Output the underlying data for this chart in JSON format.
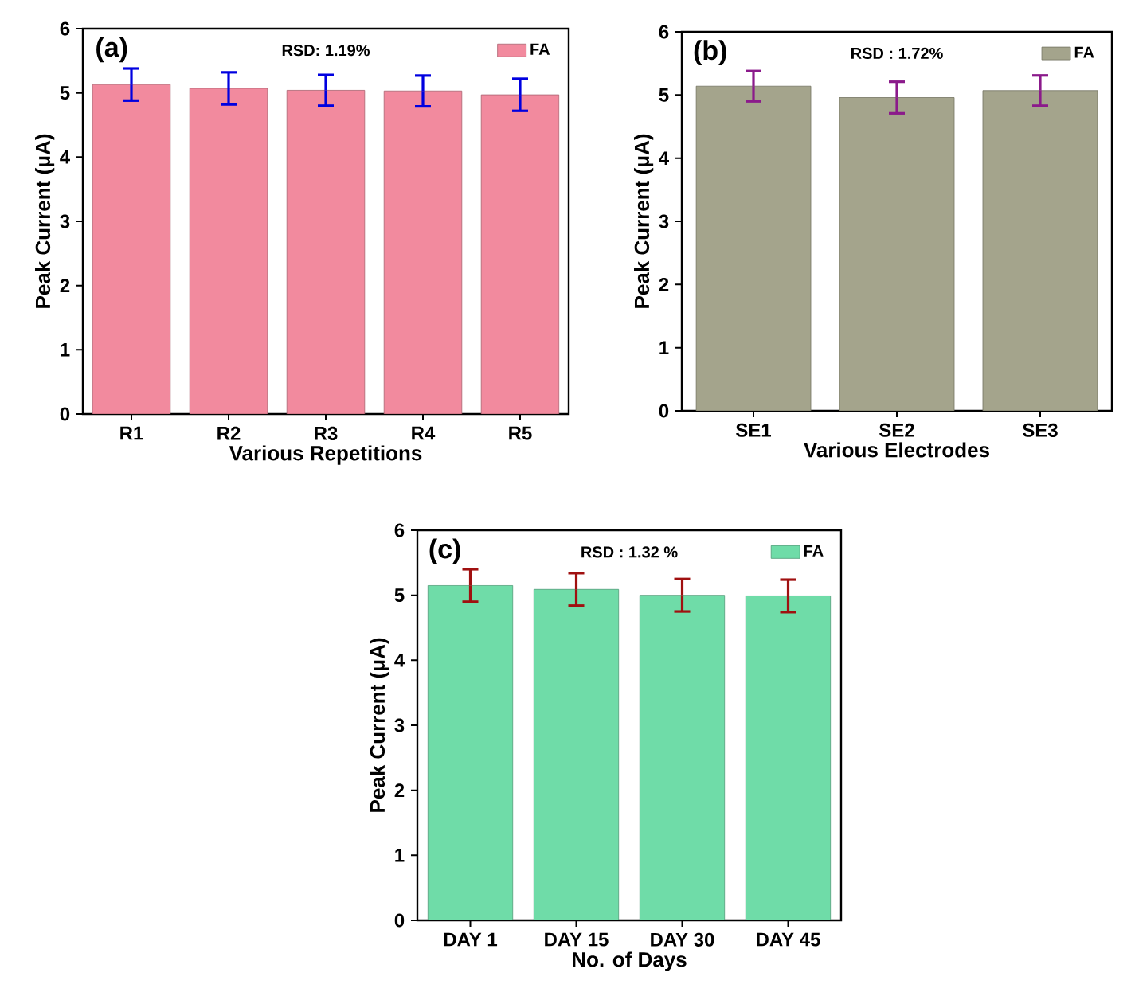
{
  "chart_data": [
    {
      "type": "bar",
      "categories": [
        "R1",
        "R2",
        "R3",
        "R4",
        "R5"
      ],
      "xlabel": "Various Repetitions",
      "ylabel": "Peak Current (μA)",
      "ylim": [
        0,
        6
      ],
      "yticks": [
        0,
        1,
        2,
        3,
        4,
        5,
        6
      ],
      "legend": "top right",
      "annotations": [
        "(a)",
        "RSD: 1.19%"
      ],
      "series": [
        {
          "name": "FA",
          "color": "#f28a9e",
          "values": [
            5.13,
            5.07,
            5.04,
            5.03,
            4.97
          ],
          "errors": [
            0.25,
            0.25,
            0.24,
            0.24,
            0.25
          ]
        }
      ]
    },
    {
      "type": "bar",
      "categories": [
        "SE1",
        "SE2",
        "SE3"
      ],
      "xlabel": "Various Electrodes",
      "ylabel": "Peak Current (μA)",
      "ylim": [
        0,
        6
      ],
      "yticks": [
        0,
        1,
        2,
        3,
        4,
        5,
        6
      ],
      "legend": "top right",
      "annotations": [
        "(b)",
        "RSD : 1.72%"
      ],
      "series": [
        {
          "name": "FA",
          "color": "#a4a48c",
          "values": [
            5.14,
            4.96,
            5.07
          ],
          "errors": [
            0.24,
            0.25,
            0.24
          ]
        }
      ]
    },
    {
      "type": "bar",
      "categories": [
        "DAY 1",
        "DAY 15",
        "DAY 30",
        "DAY 45"
      ],
      "xlabel": "No. of Days",
      "ylabel": "Peak Current (μA)",
      "ylim": [
        0,
        6
      ],
      "yticks": [
        0,
        1,
        2,
        3,
        4,
        5,
        6
      ],
      "legend": "top right",
      "annotations": [
        "(c)",
        "RSD : 1.32 %"
      ],
      "series": [
        {
          "name": "FA",
          "color": "#6fdca8",
          "values": [
            5.15,
            5.09,
            5.0,
            4.99
          ],
          "errors": [
            0.25,
            0.25,
            0.25,
            0.25
          ]
        }
      ]
    }
  ]
}
